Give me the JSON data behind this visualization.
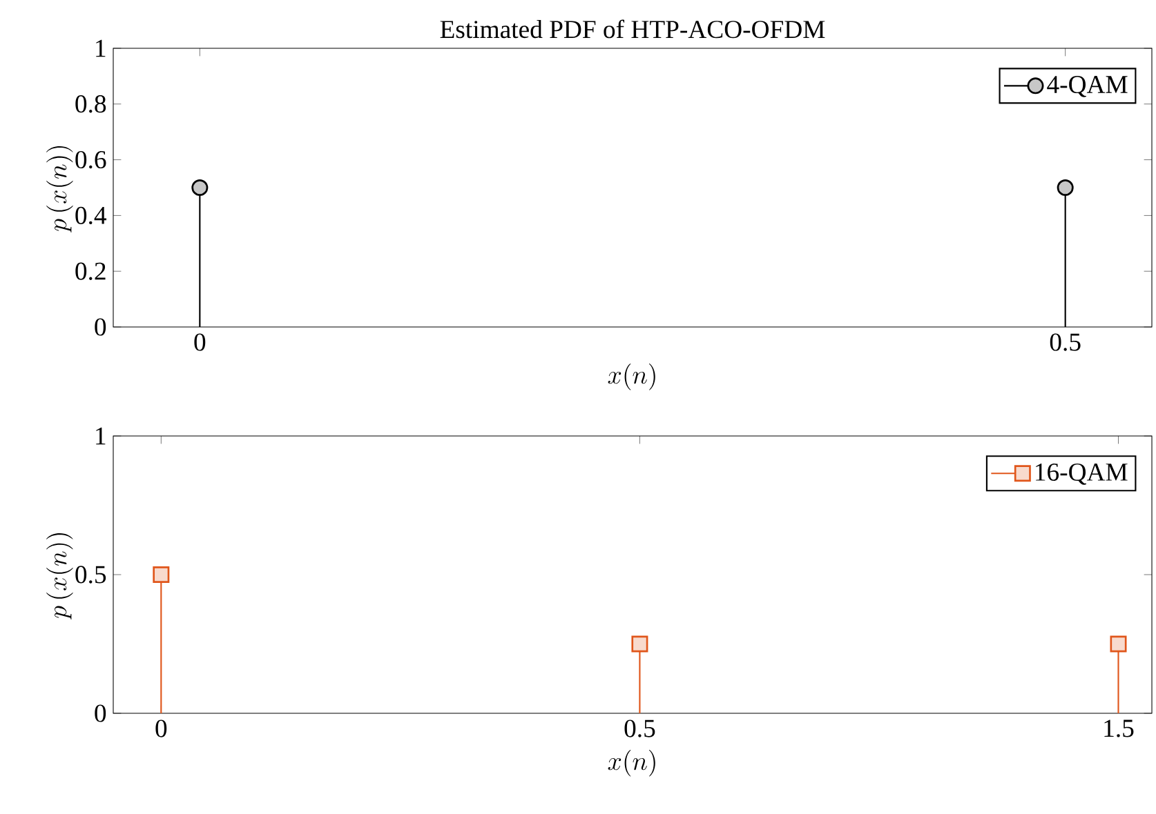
{
  "chart_data": [
    {
      "type": "lollipop",
      "title": "Estimated PDF of HTP-ACO-OFDM",
      "xlabel": "x(n)",
      "ylabel": "p\\left(x(n)\\right)",
      "x": [
        0,
        0.5
      ],
      "xlim": [
        -0.05,
        0.55
      ],
      "xticks": [
        0,
        0.5
      ],
      "ylim": [
        0,
        1
      ],
      "yticks": [
        0,
        0.2,
        0.4,
        0.6,
        0.8,
        1
      ],
      "marker": "circle",
      "legend": "top right",
      "series": [
        {
          "name": "4-QAM",
          "color": "#000000",
          "values": [
            0.5,
            0.5
          ]
        }
      ]
    },
    {
      "type": "lollipop",
      "xlabel": "x(n)",
      "ylabel": "p\\left(x(n)\\right)",
      "categories": [
        "0",
        "0.5",
        "1.5"
      ],
      "ylim": [
        0,
        1
      ],
      "yticks": [
        0,
        0.5,
        1
      ],
      "marker": "square",
      "legend": "top right",
      "series": [
        {
          "name": "16-QAM",
          "color": "#e0561b",
          "values": [
            0.5,
            0.25,
            0.25
          ]
        }
      ]
    }
  ]
}
